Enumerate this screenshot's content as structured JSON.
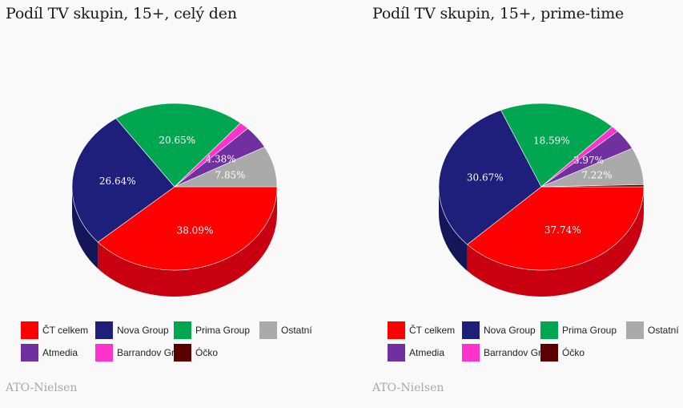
{
  "chart_data": [
    {
      "type": "pie",
      "title": "Podíl TV skupin, 15+, celý den",
      "source": "ATO-Nielsen",
      "slices": [
        {
          "name": "ČT celkem",
          "value": 38.09,
          "label": "38.09%",
          "color": "#ff0000",
          "dark": "#c8000f"
        },
        {
          "name": "Nova Group",
          "value": 26.64,
          "label": "26.64%",
          "color": "#1d1f7a",
          "dark": "#14165a"
        },
        {
          "name": "Prima Group",
          "value": 20.65,
          "label": "20.65%",
          "color": "#00a650",
          "dark": "#007a3a"
        },
        {
          "name": "Barrandov Group",
          "value": 1.5,
          "label": "",
          "color": "#ff33cc",
          "dark": "#c0209a"
        },
        {
          "name": "Atmedia",
          "value": 4.38,
          "label": "4.38%",
          "color": "#7030a0",
          "dark": "#502078"
        },
        {
          "name": "Ostatní",
          "value": 7.85,
          "label": "7.85%",
          "color": "#aaaaaa",
          "dark": "#808080"
        },
        {
          "name": "Óčko",
          "value": 0.0,
          "label": "",
          "color": "#5a0000",
          "dark": "#400000"
        }
      ],
      "legend": [
        "ČT celkem",
        "Nova Group",
        "Prima Group",
        "Ostatní",
        "Atmedia",
        "Barrandov Group",
        "Óčko"
      ]
    },
    {
      "type": "pie",
      "title": "Podíl TV skupin, 15+, prime-time",
      "source": "ATO-Nielsen",
      "slices": [
        {
          "name": "ČT celkem",
          "value": 37.74,
          "label": "37.74%",
          "color": "#ff0000",
          "dark": "#c8000f"
        },
        {
          "name": "Nova Group",
          "value": 30.67,
          "label": "30.67%",
          "color": "#1d1f7a",
          "dark": "#14165a"
        },
        {
          "name": "Prima Group",
          "value": 18.59,
          "label": "18.59%",
          "color": "#00a650",
          "dark": "#007a3a"
        },
        {
          "name": "Barrandov Group",
          "value": 1.2,
          "label": "",
          "color": "#ff33cc",
          "dark": "#c0209a"
        },
        {
          "name": "Atmedia",
          "value": 3.97,
          "label": "3.97%",
          "color": "#7030a0",
          "dark": "#502078"
        },
        {
          "name": "Ostatní",
          "value": 7.22,
          "label": "7.22%",
          "color": "#aaaaaa",
          "dark": "#808080"
        },
        {
          "name": "Óčko",
          "value": 0.4,
          "label": "",
          "color": "#5a0000",
          "dark": "#400000"
        }
      ],
      "legend": [
        "ČT celkem",
        "Nova Group",
        "Prima Group",
        "Ostatní",
        "Atmedia",
        "Barrandov Group",
        "Óčko"
      ]
    }
  ]
}
